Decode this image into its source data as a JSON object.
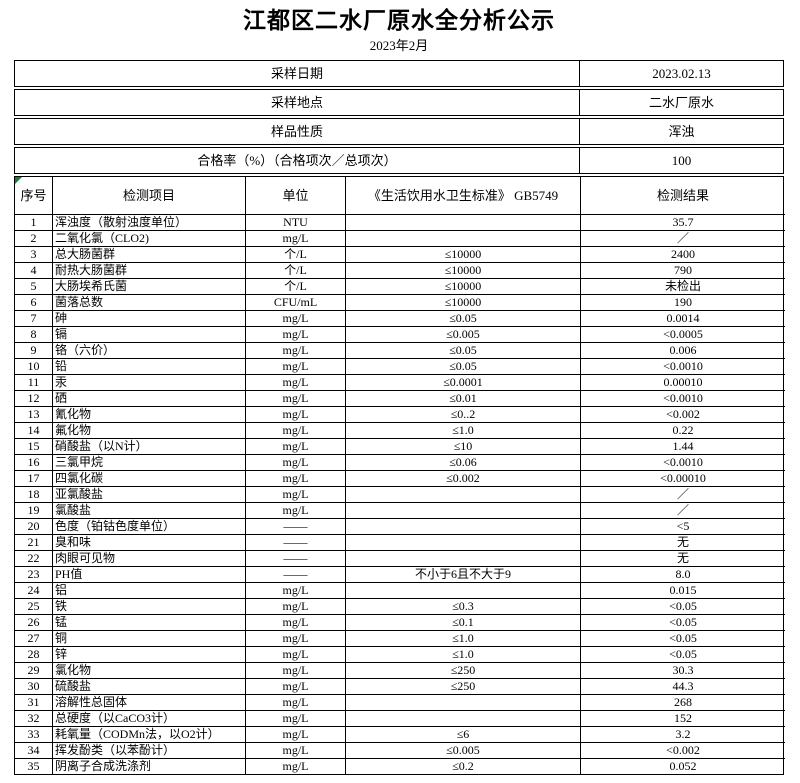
{
  "page": {
    "title": "江都区二水厂原水全分析公示",
    "subtitle": "2023年2月"
  },
  "colors": {
    "border": "#000000",
    "corner_marker": "#1e7e34",
    "text": "#000000",
    "background": "#ffffff"
  },
  "info_rows": [
    {
      "label": "采样日期",
      "value": "2023.02.13"
    },
    {
      "label": "采样地点",
      "value": "二水厂原水"
    },
    {
      "label": "样品性质",
      "value": "浑浊"
    },
    {
      "label": "合格率（%）（合格项次／总项次）",
      "value": "100"
    }
  ],
  "table": {
    "headers": {
      "no": "序号",
      "item": "检测项目",
      "unit": "单位",
      "standard": "《生活饮用水卫生标准》 GB5749",
      "result": "检测结果"
    },
    "rows": [
      {
        "no": "1",
        "item": "浑浊度（散射浊度单位）",
        "unit": "NTU",
        "standard": "",
        "result": "35.7"
      },
      {
        "no": "2",
        "item": "二氧化氯（CLO2)",
        "unit": "mg/L",
        "standard": "",
        "result": "／"
      },
      {
        "no": "3",
        "item": "总大肠菌群",
        "unit": "个/L",
        "standard": "≤10000",
        "result": "2400"
      },
      {
        "no": "4",
        "item": "耐热大肠菌群",
        "unit": "个/L",
        "standard": "≤10000",
        "result": "790"
      },
      {
        "no": "5",
        "item": "大肠埃希氏菌",
        "unit": "个/L",
        "standard": "≤10000",
        "result": "未检出"
      },
      {
        "no": "6",
        "item": "菌落总数",
        "unit": "CFU/mL",
        "standard": "≤10000",
        "result": "190"
      },
      {
        "no": "7",
        "item": "砷",
        "unit": "mg/L",
        "standard": "≤0.05",
        "result": "0.0014"
      },
      {
        "no": "8",
        "item": "镉",
        "unit": "mg/L",
        "standard": "≤0.005",
        "result": "<0.0005"
      },
      {
        "no": "9",
        "item": "铬（六价）",
        "unit": "mg/L",
        "standard": "≤0.05",
        "result": "0.006"
      },
      {
        "no": "10",
        "item": "铅",
        "unit": "mg/L",
        "standard": "≤0.05",
        "result": "<0.0010"
      },
      {
        "no": "11",
        "item": "汞",
        "unit": "mg/L",
        "standard": "≤0.0001",
        "result": "0.00010"
      },
      {
        "no": "12",
        "item": "硒",
        "unit": "mg/L",
        "standard": "≤0.01",
        "result": "<0.0010"
      },
      {
        "no": "13",
        "item": "氰化物",
        "unit": "mg/L",
        "standard": "≤0..2",
        "result": "<0.002"
      },
      {
        "no": "14",
        "item": "氟化物",
        "unit": "mg/L",
        "standard": "≤1.0",
        "result": "0.22"
      },
      {
        "no": "15",
        "item": "硝酸盐（以N计）",
        "unit": "mg/L",
        "standard": "≤10",
        "result": "1.44"
      },
      {
        "no": "16",
        "item": "三氯甲烷",
        "unit": "mg/L",
        "standard": "≤0.06",
        "result": "<0.0010"
      },
      {
        "no": "17",
        "item": "四氯化碳",
        "unit": "mg/L",
        "standard": "≤0.002",
        "result": "<0.00010"
      },
      {
        "no": "18",
        "item": "亚氯酸盐",
        "unit": "mg/L",
        "standard": "",
        "result": "／"
      },
      {
        "no": "19",
        "item": "氯酸盐",
        "unit": "mg/L",
        "standard": "",
        "result": "／"
      },
      {
        "no": "20",
        "item": "色度（铂钴色度单位）",
        "unit": "——",
        "standard": "",
        "result": "<5"
      },
      {
        "no": "21",
        "item": "臭和味",
        "unit": "——",
        "standard": "",
        "result": "无"
      },
      {
        "no": "22",
        "item": "肉眼可见物",
        "unit": "——",
        "standard": "",
        "result": "无"
      },
      {
        "no": "23",
        "item": "PH值",
        "unit": "——",
        "standard": "不小于6且不大于9",
        "result": "8.0"
      },
      {
        "no": "24",
        "item": "铝",
        "unit": "mg/L",
        "standard": "",
        "result": "0.015"
      },
      {
        "no": "25",
        "item": "铁",
        "unit": "mg/L",
        "standard": "≤0.3",
        "result": "<0.05"
      },
      {
        "no": "26",
        "item": "锰",
        "unit": "mg/L",
        "standard": "≤0.1",
        "result": "<0.05"
      },
      {
        "no": "27",
        "item": "铜",
        "unit": "mg/L",
        "standard": "≤1.0",
        "result": "<0.05"
      },
      {
        "no": "28",
        "item": "锌",
        "unit": "mg/L",
        "standard": "≤1.0",
        "result": "<0.05"
      },
      {
        "no": "29",
        "item": "氯化物",
        "unit": "mg/L",
        "standard": "≤250",
        "result": "30.3"
      },
      {
        "no": "30",
        "item": "硫酸盐",
        "unit": "mg/L",
        "standard": "≤250",
        "result": "44.3"
      },
      {
        "no": "31",
        "item": "溶解性总固体",
        "unit": "mg/L",
        "standard": "",
        "result": "268"
      },
      {
        "no": "32",
        "item": "总硬度（以CaCO3计）",
        "unit": "mg/L",
        "standard": "",
        "result": "152"
      },
      {
        "no": "33",
        "item": "耗氧量（CODMn法，以O2计）",
        "unit": "mg/L",
        "standard": "≤6",
        "result": "3.2"
      },
      {
        "no": "34",
        "item": "挥发酚类（以苯酚计）",
        "unit": "mg/L",
        "standard": "≤0.005",
        "result": "<0.002"
      },
      {
        "no": "35",
        "item": "阴离子合成洗涤剂",
        "unit": "mg/L",
        "standard": "≤0.2",
        "result": "0.052"
      }
    ]
  }
}
